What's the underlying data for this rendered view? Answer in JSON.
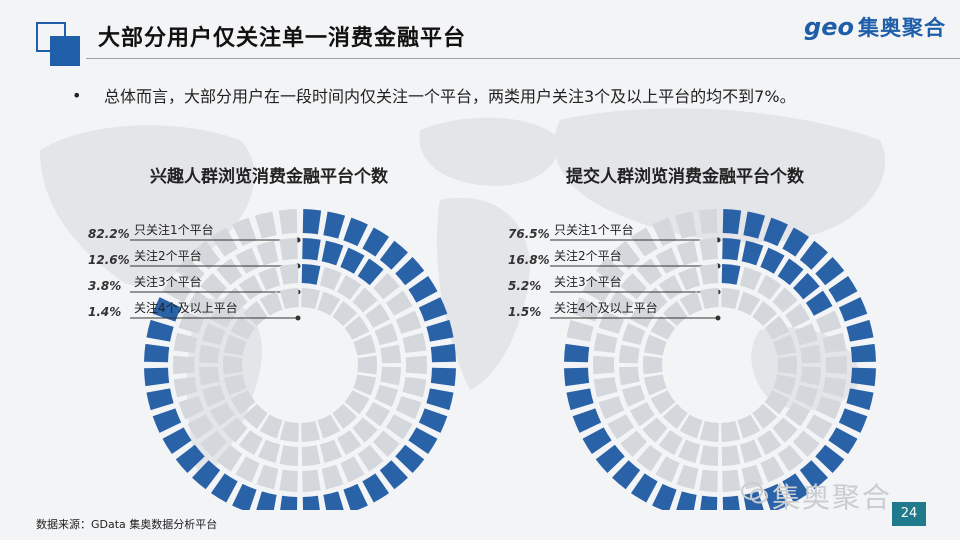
{
  "page": {
    "title": "大部分用户仅关注单一消费金融平台",
    "bullet": "总体而言，大部分用户在一段时间内仅关注一个平台，两类用户关注3个及以上平台的均不到7%。",
    "logo_en": "geo",
    "logo_cn": "集奥聚合",
    "source": "数据来源：GData  集奥数据分析平台",
    "watermark": "集奥聚合",
    "page_number": "24",
    "accent_color": "#2a62a8",
    "muted_color": "#d4d7db"
  },
  "chart_data": [
    {
      "type": "pie",
      "title": "兴趣人群浏览消费金融平台个数",
      "categories": [
        "只关注1个平台",
        "关注2个平台",
        "关注3个平台",
        "关注4个及以上平台"
      ],
      "values": [
        82.2,
        12.6,
        3.8,
        1.4
      ],
      "labels": [
        "82.2%",
        "12.6%",
        "3.8%",
        "1.4%"
      ]
    },
    {
      "type": "pie",
      "title": "提交人群浏览消费金融平台个数",
      "categories": [
        "只关注1个平台",
        "关注2个平台",
        "关注3个平台",
        "关注4个及以上平台"
      ],
      "values": [
        76.5,
        16.8,
        5.2,
        1.5
      ],
      "labels": [
        "76.5%",
        "16.8%",
        "5.2%",
        "1.5%"
      ]
    }
  ]
}
